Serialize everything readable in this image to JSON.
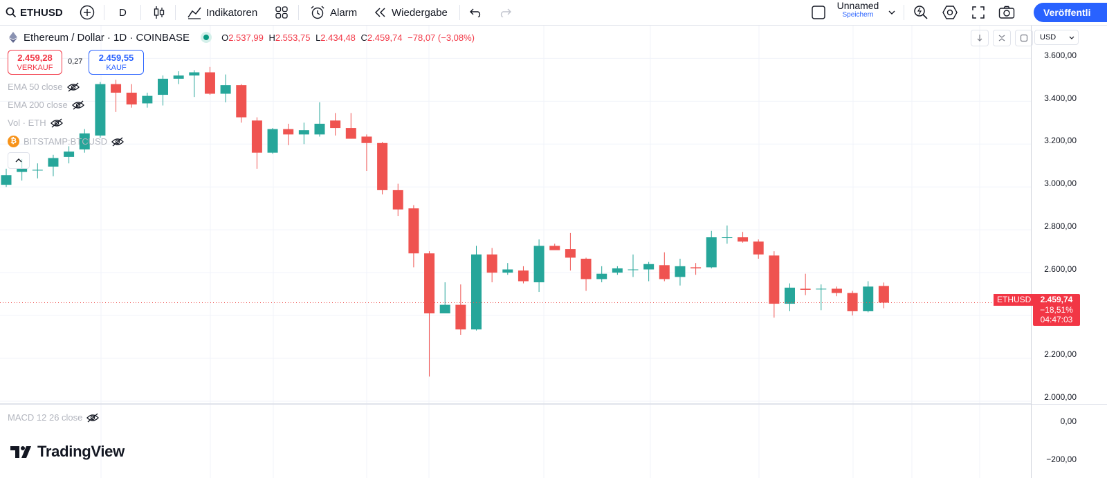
{
  "toolbar": {
    "symbol": "ETHUSD",
    "interval": "D",
    "indicators_label": "Indikatoren",
    "alarm_label": "Alarm",
    "replay_label": "Wiedergabe",
    "layout_name": "Unnamed",
    "layout_status": "Speichern",
    "publish_label": "Veröffentli"
  },
  "legend": {
    "title": "Ethereum / Dollar · 1D · COINBASE",
    "o_label": "O",
    "o_value": "2.537,99",
    "h_label": "H",
    "h_value": "2.553,75",
    "l_label": "L",
    "l_value": "2.434,48",
    "c_label": "C",
    "c_value": "2.459,74",
    "change": "−78,07 (−3,08%)"
  },
  "trade": {
    "sell_price": "2.459,28",
    "sell_label": "VERKAUF",
    "spread": "0,27",
    "buy_price": "2.459,55",
    "buy_label": "KAUF"
  },
  "indicators": [
    "EMA 50 close",
    "EMA 200 close",
    "Vol · ETH",
    "BITSTAMP:BTCUSD"
  ],
  "macd_label": "MACD 12 26 close",
  "axis": {
    "currency": "USD",
    "labels": [
      "3.600,00",
      "3.400,00",
      "3.200,00",
      "3.000,00",
      "2.800,00",
      "2.600,00",
      "2.200,00",
      "2.000,00"
    ],
    "macd_labels": [
      "0,00",
      "−200,00"
    ]
  },
  "last_price": {
    "symbol": "ETHUSD",
    "price": "2.459,74",
    "change_pct": "−18,51%",
    "countdown": "04:47:03"
  },
  "brand": "TradingView",
  "colors": {
    "up": "#26a69a",
    "down": "#ef5350",
    "accent": "#2962ff",
    "price_tag": "#f23645"
  },
  "chart_data": {
    "type": "candlestick",
    "y_axis": {
      "min": 2000,
      "max": 3600
    },
    "candles": [
      {
        "o": 3010,
        "h": 3085,
        "l": 3000,
        "c": 3055
      },
      {
        "o": 3070,
        "h": 3130,
        "l": 3030,
        "c": 3085
      },
      {
        "o": 3080,
        "h": 3110,
        "l": 3040,
        "c": 3080
      },
      {
        "o": 3095,
        "h": 3150,
        "l": 3050,
        "c": 3135
      },
      {
        "o": 3140,
        "h": 3190,
        "l": 3110,
        "c": 3165
      },
      {
        "o": 3175,
        "h": 3270,
        "l": 3160,
        "c": 3250
      },
      {
        "o": 3240,
        "h": 3490,
        "l": 3230,
        "c": 3480
      },
      {
        "o": 3480,
        "h": 3500,
        "l": 3350,
        "c": 3440
      },
      {
        "o": 3440,
        "h": 3480,
        "l": 3370,
        "c": 3385
      },
      {
        "o": 3390,
        "h": 3440,
        "l": 3370,
        "c": 3425
      },
      {
        "o": 3430,
        "h": 3520,
        "l": 3380,
        "c": 3505
      },
      {
        "o": 3505,
        "h": 3540,
        "l": 3480,
        "c": 3520
      },
      {
        "o": 3520,
        "h": 3545,
        "l": 3420,
        "c": 3535
      },
      {
        "o": 3535,
        "h": 3560,
        "l": 3430,
        "c": 3435
      },
      {
        "o": 3435,
        "h": 3525,
        "l": 3395,
        "c": 3475
      },
      {
        "o": 3475,
        "h": 3480,
        "l": 3300,
        "c": 3325
      },
      {
        "o": 3310,
        "h": 3325,
        "l": 3085,
        "c": 3160
      },
      {
        "o": 3160,
        "h": 3275,
        "l": 3155,
        "c": 3270
      },
      {
        "o": 3270,
        "h": 3295,
        "l": 3195,
        "c": 3245
      },
      {
        "o": 3245,
        "h": 3300,
        "l": 3200,
        "c": 3265
      },
      {
        "o": 3245,
        "h": 3395,
        "l": 3235,
        "c": 3295
      },
      {
        "o": 3310,
        "h": 3345,
        "l": 3240,
        "c": 3275
      },
      {
        "o": 3275,
        "h": 3345,
        "l": 3225,
        "c": 3225
      },
      {
        "o": 3235,
        "h": 3245,
        "l": 3075,
        "c": 3205
      },
      {
        "o": 3205,
        "h": 3210,
        "l": 2965,
        "c": 2985
      },
      {
        "o": 2985,
        "h": 3015,
        "l": 2865,
        "c": 2895
      },
      {
        "o": 2900,
        "h": 2915,
        "l": 2625,
        "c": 2690
      },
      {
        "o": 2690,
        "h": 2700,
        "l": 2115,
        "c": 2410
      },
      {
        "o": 2410,
        "h": 2555,
        "l": 2410,
        "c": 2450
      },
      {
        "o": 2450,
        "h": 2545,
        "l": 2310,
        "c": 2335
      },
      {
        "o": 2335,
        "h": 2725,
        "l": 2330,
        "c": 2685
      },
      {
        "o": 2685,
        "h": 2715,
        "l": 2555,
        "c": 2600
      },
      {
        "o": 2600,
        "h": 2645,
        "l": 2590,
        "c": 2615
      },
      {
        "o": 2610,
        "h": 2630,
        "l": 2550,
        "c": 2560
      },
      {
        "o": 2555,
        "h": 2755,
        "l": 2510,
        "c": 2725
      },
      {
        "o": 2725,
        "h": 2735,
        "l": 2710,
        "c": 2705
      },
      {
        "o": 2710,
        "h": 2785,
        "l": 2610,
        "c": 2670
      },
      {
        "o": 2665,
        "h": 2670,
        "l": 2515,
        "c": 2570
      },
      {
        "o": 2570,
        "h": 2630,
        "l": 2555,
        "c": 2595
      },
      {
        "o": 2600,
        "h": 2630,
        "l": 2590,
        "c": 2620
      },
      {
        "o": 2615,
        "h": 2685,
        "l": 2580,
        "c": 2615
      },
      {
        "o": 2615,
        "h": 2650,
        "l": 2560,
        "c": 2640
      },
      {
        "o": 2635,
        "h": 2695,
        "l": 2560,
        "c": 2570
      },
      {
        "o": 2580,
        "h": 2665,
        "l": 2540,
        "c": 2630
      },
      {
        "o": 2625,
        "h": 2645,
        "l": 2590,
        "c": 2620
      },
      {
        "o": 2625,
        "h": 2795,
        "l": 2620,
        "c": 2765
      },
      {
        "o": 2765,
        "h": 2820,
        "l": 2735,
        "c": 2765
      },
      {
        "o": 2765,
        "h": 2790,
        "l": 2740,
        "c": 2745
      },
      {
        "o": 2745,
        "h": 2755,
        "l": 2665,
        "c": 2685
      },
      {
        "o": 2680,
        "h": 2700,
        "l": 2390,
        "c": 2455
      },
      {
        "o": 2455,
        "h": 2550,
        "l": 2420,
        "c": 2530
      },
      {
        "o": 2525,
        "h": 2595,
        "l": 2495,
        "c": 2520
      },
      {
        "o": 2525,
        "h": 2545,
        "l": 2425,
        "c": 2525
      },
      {
        "o": 2525,
        "h": 2535,
        "l": 2490,
        "c": 2505
      },
      {
        "o": 2505,
        "h": 2515,
        "l": 2400,
        "c": 2420
      },
      {
        "o": 2420,
        "h": 2560,
        "l": 2415,
        "c": 2535
      },
      {
        "o": 2538,
        "h": 2554,
        "l": 2434,
        "c": 2460
      }
    ]
  }
}
